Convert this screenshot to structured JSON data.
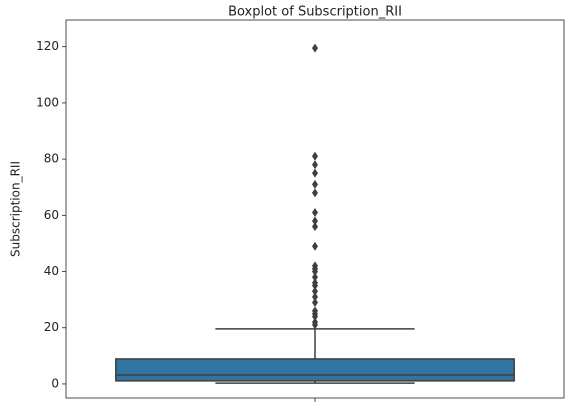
{
  "chart_data": {
    "type": "box",
    "title": "Boxplot of Subscription_RII",
    "ylabel": "Subscription_RII",
    "ylim": [
      -5,
      129.5
    ],
    "yticks": [
      0,
      20,
      40,
      60,
      80,
      100,
      120
    ],
    "color": "#3274a1",
    "line_color": "#3f3f3f",
    "boxes": [
      {
        "whislo": 0.3,
        "q1": 1.1,
        "median": 3.2,
        "q3": 8.9,
        "whishi": 19.6,
        "fliers": [
          119.5,
          81,
          78,
          75,
          71,
          68,
          61,
          58,
          56,
          49,
          42,
          41,
          40,
          38,
          36,
          35,
          33,
          31,
          29,
          26,
          25,
          24,
          22,
          21
        ]
      }
    ]
  }
}
